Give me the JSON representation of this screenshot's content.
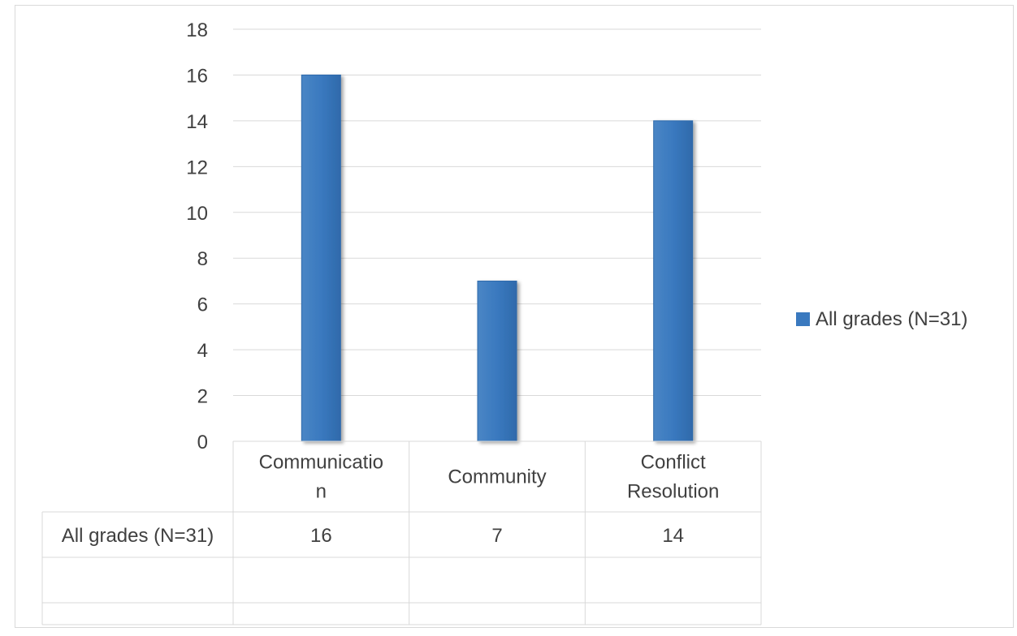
{
  "chart_data": {
    "type": "bar",
    "categories": [
      "Communication",
      "Community",
      "Conflict Resolution"
    ],
    "category_label_lines": [
      [
        "Communicatio",
        "n"
      ],
      [
        "Community"
      ],
      [
        "Conflict",
        "Resolution"
      ]
    ],
    "series": [
      {
        "name": "All grades (N=31)",
        "values": [
          16,
          7,
          14
        ]
      }
    ],
    "ylim": [
      0,
      18
    ],
    "yticks": [
      "0",
      "2",
      "4",
      "6",
      "8",
      "10",
      "12",
      "14",
      "16",
      "18"
    ],
    "grid": true,
    "legend": "right",
    "data_table": true,
    "bar_color": "#3a79bf"
  }
}
